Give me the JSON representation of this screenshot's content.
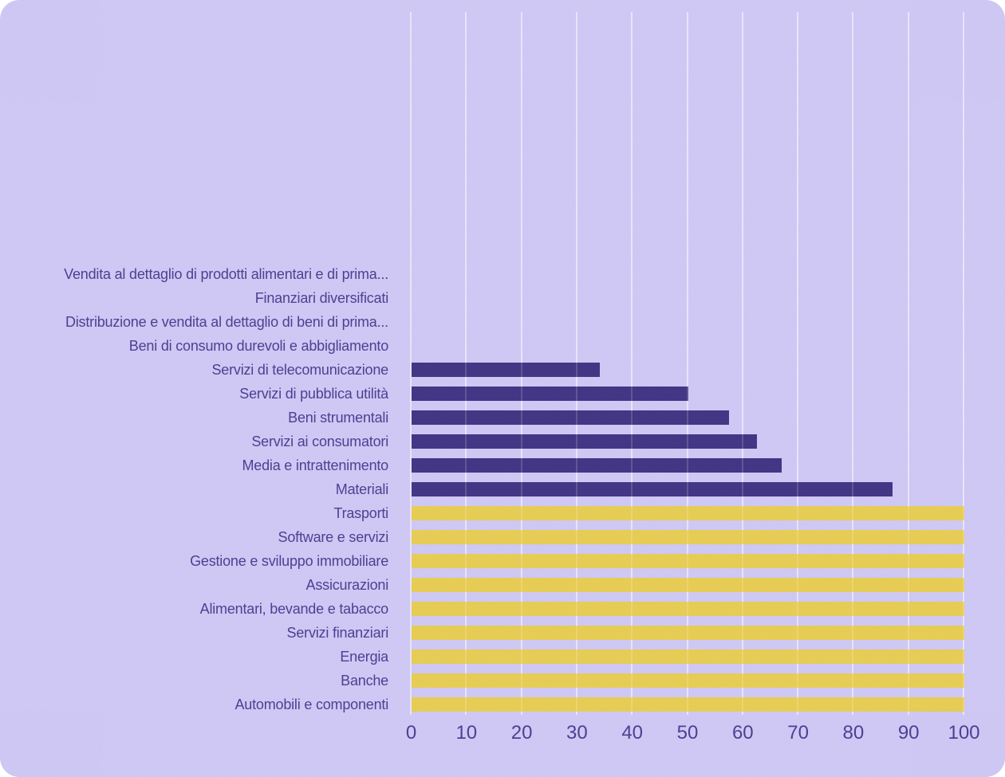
{
  "style": {
    "page_background": "#ffffff",
    "card_background": "#cfc8f5",
    "text_color": "#4a3d92",
    "gridline_color": "#ffffff",
    "bar_color_partial": "#3b2d80",
    "bar_color_full": "#e7cc4d"
  },
  "chart_data": {
    "type": "bar",
    "orientation": "horizontal",
    "title": "",
    "xlabel": "",
    "ylabel": "",
    "categories": [
      "Vendita al dettaglio di prodotti alimentari e di prima...",
      "Finanziari diversificati",
      "Distribuzione e vendita al dettaglio di beni di prima...",
      "Beni di consumo durevoli e abbigliamento",
      "Servizi di telecomunicazione",
      "Servizi di pubblica utilità",
      "Beni strumentali",
      "Servizi ai consumatori",
      "Media e intrattenimento",
      "Materiali",
      "Trasporti",
      "Software e servizi",
      "Gestione e sviluppo immobiliare",
      "Assicurazioni",
      "Alimentari, bevande e tabacco",
      "Servizi finanziari",
      "Energia",
      "Banche",
      "Automobili e componenti"
    ],
    "values": [
      0,
      0,
      0,
      0,
      34,
      50,
      57.5,
      62.5,
      67,
      87,
      100,
      100,
      100,
      100,
      100,
      100,
      100,
      100,
      100
    ],
    "bar_colors": [
      "#3b2d80",
      "#3b2d80",
      "#3b2d80",
      "#3b2d80",
      "#3b2d80",
      "#3b2d80",
      "#3b2d80",
      "#3b2d80",
      "#3b2d80",
      "#3b2d80",
      "#e7cc4d",
      "#e7cc4d",
      "#e7cc4d",
      "#e7cc4d",
      "#e7cc4d",
      "#e7cc4d",
      "#e7cc4d",
      "#e7cc4d",
      "#e7cc4d"
    ],
    "x_ticks": [
      0,
      10,
      20,
      30,
      40,
      50,
      60,
      70,
      80,
      90,
      100
    ],
    "xlim": [
      0,
      100
    ],
    "grid": "vertical",
    "legend": "none"
  }
}
